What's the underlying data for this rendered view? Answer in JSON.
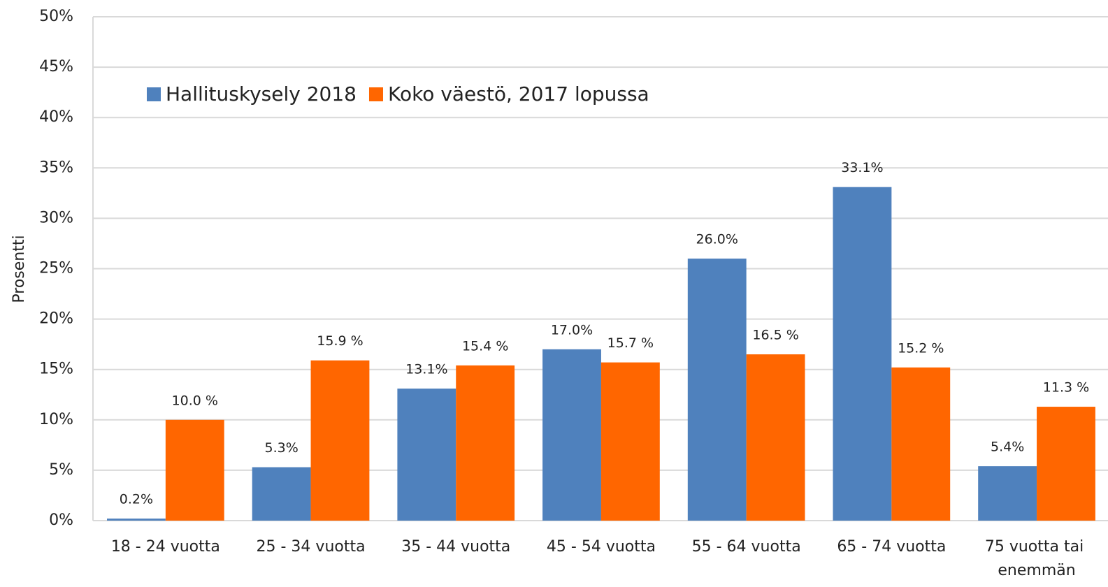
{
  "chart_data": {
    "type": "bar",
    "y_label": "Prosentti",
    "categories": [
      "18 - 24 vuotta",
      "25 - 34 vuotta",
      "35 - 44 vuotta",
      "45 - 54 vuotta",
      "55 - 64 vuotta",
      "65 - 74 vuotta",
      "75 vuotta tai enemmän"
    ],
    "series": [
      {
        "name": "Hallituskysely 2018",
        "color": "#4f81bd",
        "values": [
          0.2,
          5.3,
          13.1,
          17.0,
          26.0,
          33.1,
          5.4
        ],
        "value_labels": [
          "0.2%",
          "5.3%",
          "13.1%",
          "17.0%",
          "26.0%",
          "33.1%",
          "5.4%"
        ]
      },
      {
        "name": "Koko väestö, 2017 lopussa",
        "color": "#ff6600",
        "values": [
          10.0,
          15.9,
          15.4,
          15.7,
          16.5,
          15.2,
          11.3
        ],
        "value_labels": [
          "10.0 %",
          "15.9 %",
          "15.4 %",
          "15.7 %",
          "16.5 %",
          "15.2 %",
          "11.3 %"
        ]
      }
    ],
    "ylim": [
      0,
      50
    ],
    "yticks": [
      {
        "value": 0,
        "label": "0%"
      },
      {
        "value": 5,
        "label": "5%"
      },
      {
        "value": 10,
        "label": "10%"
      },
      {
        "value": 15,
        "label": "15%"
      },
      {
        "value": 20,
        "label": "20%"
      },
      {
        "value": 25,
        "label": "25%"
      },
      {
        "value": 30,
        "label": "30%"
      },
      {
        "value": 35,
        "label": "35%"
      },
      {
        "value": 40,
        "label": "40%"
      },
      {
        "value": 45,
        "label": "45%"
      },
      {
        "value": 50,
        "label": "50%"
      }
    ],
    "grid": true,
    "legend": "top-left"
  }
}
